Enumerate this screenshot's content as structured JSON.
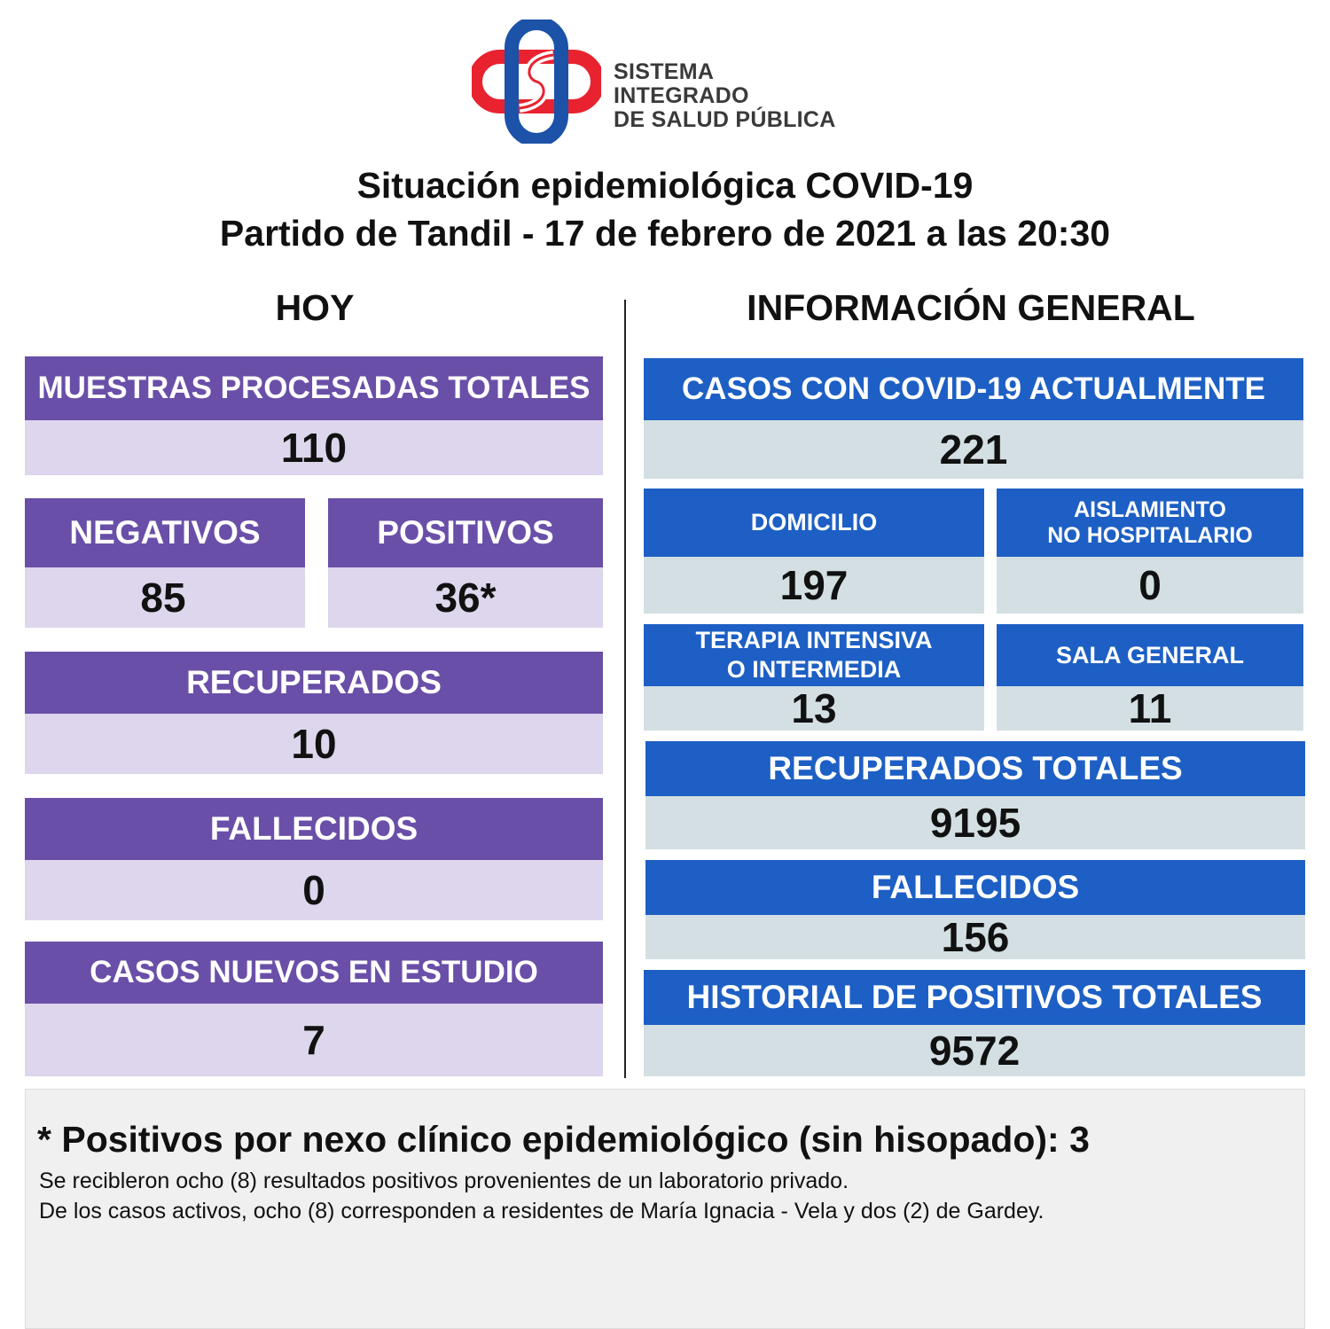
{
  "logo": {
    "line1": "SISTEMA INTEGRADO",
    "line2": "DE SALUD PÚBLICA",
    "icon": "health-cross-logo",
    "colors": {
      "red": "#e8232f",
      "blue": "#1c52a7"
    }
  },
  "title": {
    "line1": "Situación epidemiológica COVID-19",
    "line2": "Partido de Tandil - 17 de febrero de 2021 a las 20:30"
  },
  "hoy": {
    "heading": "HOY",
    "muestras": {
      "label": "MUESTRAS PROCESADAS TOTALES",
      "value": "110"
    },
    "negativos": {
      "label": "NEGATIVOS",
      "value": "85"
    },
    "positivos": {
      "label": "POSITIVOS",
      "value": "36*"
    },
    "recuperados": {
      "label": "RECUPERADOS",
      "value": "10"
    },
    "fallecidos": {
      "label": "FALLECIDOS",
      "value": "0"
    },
    "casos_nuevos": {
      "label": "CASOS NUEVOS EN ESTUDIO",
      "value": "7"
    }
  },
  "general": {
    "heading": "INFORMACIÓN GENERAL",
    "casos_actuales": {
      "label": "CASOS CON COVID-19 ACTUALMENTE",
      "value": "221"
    },
    "domicilio": {
      "label": "DOMICILIO",
      "value": "197"
    },
    "aislamiento": {
      "label_line1": "AISLAMIENTO",
      "label_line2": "NO HOSPITALARIO",
      "value": "0"
    },
    "terapia": {
      "label_line1": "TERAPIA INTENSIVA",
      "label_line2": "O INTERMEDIA",
      "value": "13"
    },
    "sala_general": {
      "label": "SALA GENERAL",
      "value": "11"
    },
    "recuperados_totales": {
      "label": "RECUPERADOS TOTALES",
      "value": "9195"
    },
    "fallecidos": {
      "label": "FALLECIDOS",
      "value": "156"
    },
    "historial": {
      "label": "HISTORIAL DE POSITIVOS TOTALES",
      "value": "9572"
    }
  },
  "notes": {
    "main": "* Positivos por nexo clínico epidemiológico (sin hisopado): 3",
    "line1": "Se recibleron ocho (8) resultados positivos provenientes de un laboratorio privado.",
    "line2": "De los casos activos, ocho (8) corresponden a residentes de María Ignacia - Vela y dos (2) de Gardey."
  },
  "colors": {
    "purple_header": "#6a4fa8",
    "purple_value": "#ddd6ec",
    "blue_header": "#1d5fc4",
    "blue_value": "#d3dfe3"
  }
}
